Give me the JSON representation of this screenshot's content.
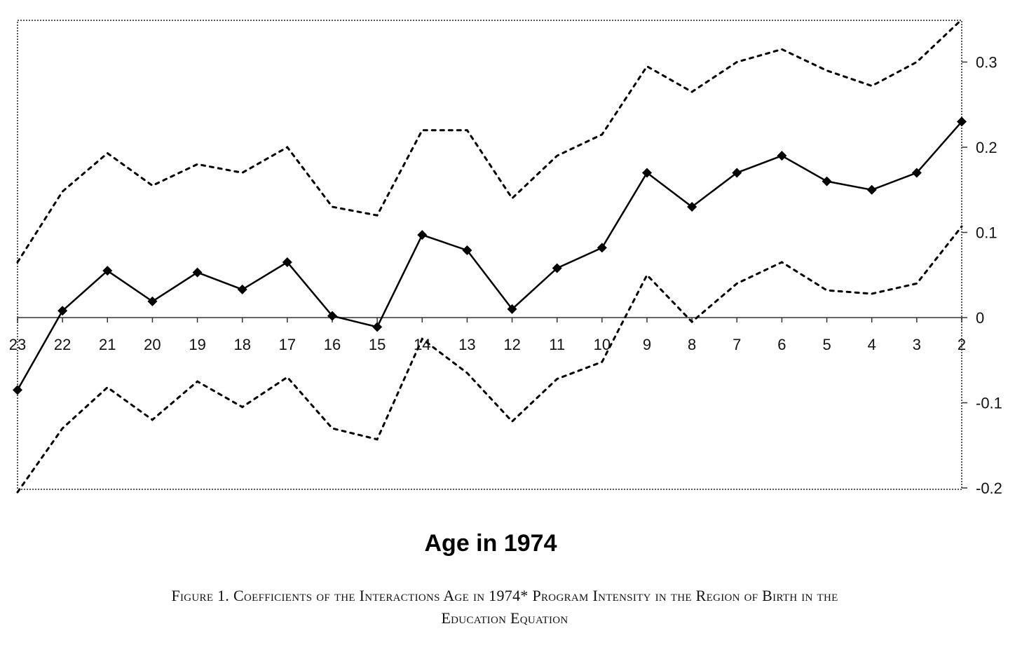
{
  "chart_data": {
    "type": "line",
    "categories": [
      "23",
      "22",
      "21",
      "20",
      "19",
      "18",
      "17",
      "16",
      "15",
      "14",
      "13",
      "12",
      "11",
      "10",
      "9",
      "8",
      "7",
      "6",
      "5",
      "4",
      "3",
      "2"
    ],
    "series": [
      {
        "role": "estimate",
        "values": [
          -0.085,
          0.008,
          0.055,
          0.019,
          0.053,
          0.033,
          0.065,
          0.002,
          -0.011,
          0.097,
          0.079,
          0.01,
          0.058,
          0.082,
          0.17,
          0.13,
          0.17,
          0.19,
          0.16,
          0.15,
          0.17,
          0.23
        ]
      },
      {
        "role": "upper_bound",
        "values": [
          0.065,
          0.148,
          0.193,
          0.155,
          0.18,
          0.17,
          0.2,
          0.13,
          0.12,
          0.22,
          0.22,
          0.14,
          0.19,
          0.215,
          0.295,
          0.265,
          0.3,
          0.315,
          0.29,
          0.272,
          0.3,
          0.35
        ]
      },
      {
        "role": "lower_bound",
        "values": [
          -0.205,
          -0.13,
          -0.082,
          -0.12,
          -0.075,
          -0.105,
          -0.07,
          -0.13,
          -0.143,
          -0.025,
          -0.065,
          -0.122,
          -0.072,
          -0.052,
          0.05,
          -0.005,
          0.04,
          0.065,
          0.032,
          0.028,
          0.04,
          0.107
        ]
      }
    ],
    "ylim": [
      -0.2,
      0.35
    ],
    "yticks": [
      -0.2,
      -0.1,
      0,
      0.1,
      0.2,
      0.3
    ],
    "ytick_labels": [
      "-0.2",
      "-0.1",
      "0",
      "0.1",
      "0.2",
      "0.3"
    ],
    "y_axis_side": "right",
    "xlabel": "Age in 1974",
    "ylabel": "",
    "title": "",
    "grid": false,
    "legend": "none",
    "colors": {
      "line": "#000000",
      "axis": "#333333",
      "frame": "#555555"
    }
  },
  "caption": {
    "line1": "Figure 1. Coefficients of the Interactions Age in 1974* Program Intensity in the Region of Birth in the",
    "line2": "Education Equation"
  }
}
